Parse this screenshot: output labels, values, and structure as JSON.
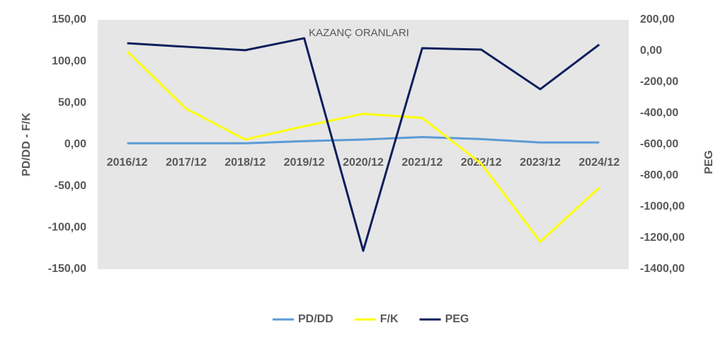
{
  "chart_data": {
    "type": "line",
    "title": "KAZANÇ ORANLARI",
    "y_label": "PD/DD - F/K",
    "y2_label": "PEG",
    "categories": [
      "2016/12",
      "2017/12",
      "2018/12",
      "2019/12",
      "2020/12",
      "2021/12",
      "2022/12",
      "2023/12",
      "2024/12"
    ],
    "series": [
      {
        "name": "PD/DD",
        "color": "#5b9bd5",
        "values": [
          1.5,
          1.5,
          1.5,
          4,
          6,
          9,
          6.5,
          2.5,
          2.5
        ]
      },
      {
        "name": "F/K",
        "color": "#ffff00",
        "values": [
          112,
          43,
          6,
          22,
          37,
          32,
          -23,
          -117,
          -52
        ]
      },
      {
        "name": "PEG",
        "color": "#0c1f5c",
        "axis": "y2",
        "values": [
          50,
          27,
          5,
          82,
          -1282,
          18,
          9,
          -245,
          41
        ]
      }
    ],
    "ylim": [
      -150,
      150
    ],
    "yticks": [
      {
        "value": -150,
        "label": "-150,00"
      },
      {
        "value": -100,
        "label": "-100,00"
      },
      {
        "value": -50,
        "label": "-50,00"
      },
      {
        "value": 0,
        "label": "0,00"
      },
      {
        "value": 50,
        "label": "50,00"
      },
      {
        "value": 100,
        "label": "100,00"
      },
      {
        "value": 150,
        "label": "150,00"
      }
    ],
    "y2lim": [
      -1400,
      200
    ],
    "y2ticks": [
      {
        "value": -1400,
        "label": "-1400,00"
      },
      {
        "value": -1200,
        "label": "-1200,00"
      },
      {
        "value": -1000,
        "label": "-1000,00"
      },
      {
        "value": -800,
        "label": "-800,00"
      },
      {
        "value": -600,
        "label": "-600,00"
      },
      {
        "value": -400,
        "label": "-400,00"
      },
      {
        "value": -200,
        "label": "-200,00"
      },
      {
        "value": 0,
        "label": "0,00"
      },
      {
        "value": 200,
        "label": "200,00"
      }
    ],
    "grid": false,
    "legend": "bottom",
    "plot_background": "#e6e6e6"
  }
}
